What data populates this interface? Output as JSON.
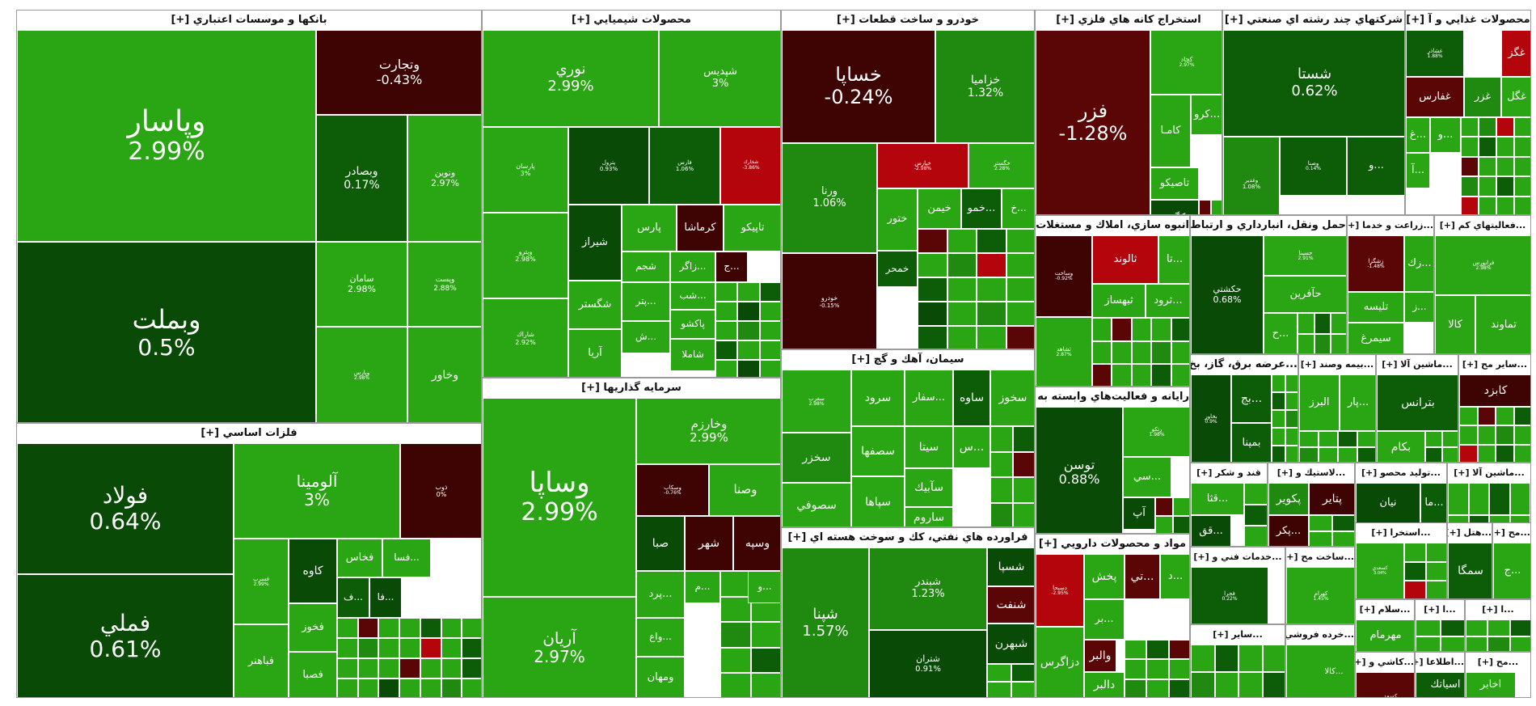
{
  "colors": {
    "bright_green": "#2aa513",
    "mid_green": "#1f8a0f",
    "dark_green": "#0c5c08",
    "darker_green": "#094a06",
    "bright_red": "#b4040c",
    "dark_red": "#5a0606",
    "maroon": "#3e0404"
  },
  "chart_data": {
    "type": "treemap",
    "sectors": [
      {
        "name": "بانکها و موسسات اعتباري [+]",
        "stocks": [
          {
            "symbol": "وپاسار",
            "change": "2.99%"
          },
          {
            "symbol": "وبملت",
            "change": "0.5%"
          },
          {
            "symbol": "وتجارت",
            "change": "-0.43%"
          },
          {
            "symbol": "وبصادر",
            "change": "0.17%"
          },
          {
            "symbol": "ونوين",
            "change": "2.97%"
          },
          {
            "symbol": "سامان",
            "change": "2.98%"
          },
          {
            "symbol": "وپست",
            "change": "2.88%"
          },
          {
            "symbol": "وپارس",
            "change": "2.98%"
          },
          {
            "symbol": "وخاور",
            "change": ""
          }
        ]
      },
      {
        "name": "محصولات شيميايي [+]",
        "stocks": [
          {
            "symbol": "نوري",
            "change": "2.99%"
          },
          {
            "symbol": "شپديس",
            "change": "3%"
          },
          {
            "symbol": "پارسان",
            "change": "3%"
          },
          {
            "symbol": "پترول",
            "change": "0.93%"
          },
          {
            "symbol": "فارس",
            "change": "1.06%"
          },
          {
            "symbol": "شخارك",
            "change": "-3.86%"
          },
          {
            "symbol": "وپترو",
            "change": "2.98%"
          },
          {
            "symbol": "شيراز",
            "change": ""
          },
          {
            "symbol": "پارس",
            "change": ""
          },
          {
            "symbol": "كرماشا",
            "change": ""
          },
          {
            "symbol": "تاپيكو",
            "change": ""
          },
          {
            "symbol": "شگستر",
            "change": ""
          },
          {
            "symbol": "شجم",
            "change": ""
          },
          {
            "symbol": "...زاگر",
            "change": ""
          },
          {
            "symbol": "...ج",
            "change": ""
          },
          {
            "symbol": "...شب",
            "change": ""
          },
          {
            "symbol": "شاراك",
            "change": "2.92%"
          },
          {
            "symbol": "...پتر",
            "change": ""
          },
          {
            "symbol": "پاكشو",
            "change": ""
          },
          {
            "symbol": "آريا",
            "change": ""
          },
          {
            "symbol": "...ش",
            "change": ""
          },
          {
            "symbol": "شاملا",
            "change": ""
          }
        ]
      },
      {
        "name": "خودرو و ساخت قطعات [+]",
        "stocks": [
          {
            "symbol": "خساپا",
            "change": "-0.24%"
          },
          {
            "symbol": "خزاميا",
            "change": "1.32%"
          },
          {
            "symbol": "ورنا",
            "change": "1.06%"
          },
          {
            "symbol": "خپارس",
            "change": "-2.98%"
          },
          {
            "symbol": "خگستر",
            "change": "2.28%"
          },
          {
            "symbol": "خودرو",
            "change": "-0.15%"
          },
          {
            "symbol": "ختور",
            "change": ""
          },
          {
            "symbol": "خيمن",
            "change": ""
          },
          {
            "symbol": "...خمو",
            "change": ""
          },
          {
            "symbol": "...خ",
            "change": ""
          },
          {
            "symbol": "خمحر",
            "change": ""
          }
        ]
      },
      {
        "name": "استخراج کانه هاي فلزي [+]",
        "stocks": [
          {
            "symbol": "فزر",
            "change": "-1.28%"
          },
          {
            "symbol": "كچاد",
            "change": "2.97%"
          },
          {
            "symbol": "كامـا",
            "change": ""
          },
          {
            "symbol": "...كرو",
            "change": ""
          },
          {
            "symbol": "تاصيكو",
            "change": ""
          },
          {
            "symbol": "كگهر",
            "change": ""
          }
        ]
      },
      {
        "name": "شرکتهاي چند رشته اي صنعتي [+]",
        "stocks": [
          {
            "symbol": "شستا",
            "change": "0.62%"
          },
          {
            "symbol": "وغدير",
            "change": "1.08%"
          },
          {
            "symbol": "وصنا",
            "change": "0.14%"
          },
          {
            "symbol": "...و",
            "change": ""
          }
        ]
      },
      {
        "name": "محصولات غذايي و آ [+]",
        "stocks": [
          {
            "symbol": "غگز",
            "change": ""
          },
          {
            "symbol": "غشاذر",
            "change": "1.88%"
          },
          {
            "symbol": "غفارس",
            "change": ""
          },
          {
            "symbol": "غزر",
            "change": ""
          },
          {
            "symbol": "غگل",
            "change": ""
          },
          {
            "symbol": "...غ",
            "change": ""
          },
          {
            "symbol": "...و",
            "change": ""
          },
          {
            "symbol": "...آ",
            "change": ""
          }
        ]
      },
      {
        "name": "انبوه سازي، املاك و مستغلات [+]",
        "stocks": [
          {
            "symbol": "وساخت",
            "change": "-0.92%"
          },
          {
            "symbol": "ثالوند",
            "change": ""
          },
          {
            "symbol": "...تا",
            "change": ""
          },
          {
            "symbol": "ثبهساز",
            "change": ""
          },
          {
            "symbol": "...ثرود",
            "change": ""
          },
          {
            "symbol": "ثشاهد",
            "change": "2.87%"
          }
        ]
      },
      {
        "name": "حمل ونقل، انبارداري و ارتباط [+]...",
        "stocks": [
          {
            "symbol": "حكشتي",
            "change": "0.68%"
          },
          {
            "symbol": "حسينا",
            "change": "2.91%"
          },
          {
            "symbol": "حآفرين",
            "change": ""
          },
          {
            "symbol": "...ح",
            "change": ""
          }
        ]
      },
      {
        "name": "...زراعت و خدما [+]",
        "stocks": [
          {
            "symbol": "زشگزا",
            "change": "-1.48%"
          },
          {
            "symbol": "...زك",
            "change": ""
          },
          {
            "symbol": "تليسه",
            "change": ""
          },
          {
            "symbol": "...ز",
            "change": ""
          },
          {
            "symbol": "سيمرغ",
            "change": ""
          }
        ]
      },
      {
        "name": "...فعاليتهاي كم [+]",
        "stocks": [
          {
            "symbol": "فرابورس",
            "change": "2.98%"
          },
          {
            "symbol": "تماوند",
            "change": ""
          },
          {
            "symbol": "كالا",
            "change": ""
          }
        ]
      },
      {
        "name": "فلزات اساسي [+]",
        "stocks": [
          {
            "symbol": "فولاد",
            "change": "0.64%"
          },
          {
            "symbol": "فملي",
            "change": "0.61%"
          },
          {
            "symbol": "آلومينا",
            "change": "3%"
          },
          {
            "symbol": "ذوب",
            "change": "0%"
          },
          {
            "symbol": "فسرب",
            "change": "2.99%"
          },
          {
            "symbol": "كاوه",
            "change": ""
          },
          {
            "symbol": "فخاس",
            "change": ""
          },
          {
            "symbol": "...فسا",
            "change": ""
          },
          {
            "symbol": "فخوز",
            "change": ""
          },
          {
            "symbol": "فباهنر",
            "change": ""
          },
          {
            "symbol": "فصبا",
            "change": ""
          },
          {
            "symbol": "...ف",
            "change": ""
          },
          {
            "symbol": "...فا",
            "change": ""
          }
        ]
      },
      {
        "name": "سرمايه گذاريها [+]",
        "stocks": [
          {
            "symbol": "وساپا",
            "change": "2.99%"
          },
          {
            "symbol": "آريان",
            "change": "2.97%"
          },
          {
            "symbol": "وخارزم",
            "change": "2.99%"
          },
          {
            "symbol": "وسكاب",
            "change": "-0.76%"
          },
          {
            "symbol": "وصنا",
            "change": ""
          },
          {
            "symbol": "صبا",
            "change": ""
          },
          {
            "symbol": "شهر",
            "change": ""
          },
          {
            "symbol": "وسپه",
            "change": ""
          },
          {
            "symbol": "...پرد",
            "change": ""
          },
          {
            "symbol": "...م",
            "change": ""
          },
          {
            "symbol": "...واع",
            "change": ""
          },
          {
            "symbol": "ومهان",
            "change": ""
          },
          {
            "symbol": "...و",
            "change": ""
          }
        ]
      },
      {
        "name": "سيمان، آهك و گچ [+]",
        "stocks": [
          {
            "symbol": "سغرب",
            "change": "2.98%"
          },
          {
            "symbol": "سرود",
            "change": ""
          },
          {
            "symbol": "...سفار",
            "change": ""
          },
          {
            "symbol": "ساوه",
            "change": ""
          },
          {
            "symbol": "سخوز",
            "change": ""
          },
          {
            "symbol": "سخزر",
            "change": ""
          },
          {
            "symbol": "سصفها",
            "change": ""
          },
          {
            "symbol": "سيتا",
            "change": ""
          },
          {
            "symbol": "...س",
            "change": ""
          },
          {
            "symbol": "سآبيك",
            "change": ""
          },
          {
            "symbol": "سصوفي",
            "change": ""
          },
          {
            "symbol": "سپاها",
            "change": ""
          },
          {
            "symbol": "ساروم",
            "change": ""
          }
        ]
      },
      {
        "name": "رايانه و فعاليت‌هاي وابسته به [+]...",
        "stocks": [
          {
            "symbol": "توسن",
            "change": "0.88%"
          },
          {
            "symbol": "رتكو",
            "change": "1.98%"
          },
          {
            "symbol": "...سي",
            "change": ""
          },
          {
            "symbol": "آپ",
            "change": ""
          }
        ]
      },
      {
        "name": "فراورده هاي نفتي، كك و سوخت هسته اي [+]",
        "stocks": [
          {
            "symbol": "شپنا",
            "change": "1.57%"
          },
          {
            "symbol": "شبندر",
            "change": "1.23%"
          },
          {
            "symbol": "شتران",
            "change": "0.91%"
          },
          {
            "symbol": "شسپا",
            "change": ""
          },
          {
            "symbol": "شنفت",
            "change": ""
          },
          {
            "symbol": "شبهرن",
            "change": ""
          }
        ]
      },
      {
        "name": "مواد و محصولات دارويي [+]",
        "stocks": [
          {
            "symbol": "دسبحا",
            "change": "-2.95%"
          },
          {
            "symbol": "پخش",
            "change": ""
          },
          {
            "symbol": "...تي",
            "change": ""
          },
          {
            "symbol": "...د",
            "change": ""
          },
          {
            "symbol": "...بر",
            "change": ""
          },
          {
            "symbol": "دزاگرس",
            "change": ""
          },
          {
            "symbol": "والبر",
            "change": ""
          },
          {
            "symbol": "دالبر",
            "change": ""
          }
        ]
      },
      {
        "name": "...عرضه برق، گاز، بخ [+]",
        "stocks": [
          {
            "symbol": "بخاور",
            "change": "0.9%"
          },
          {
            "symbol": "...بج",
            "change": ""
          },
          {
            "symbol": "بمپنا",
            "change": ""
          }
        ]
      },
      {
        "name": "...بيمه وصند [+]",
        "stocks": [
          {
            "symbol": "البرز",
            "change": ""
          },
          {
            "symbol": "...پار",
            "change": ""
          }
        ]
      },
      {
        "name": "...ماشين آلا [+]",
        "stocks": [
          {
            "symbol": "بترانس",
            "change": ""
          },
          {
            "symbol": "بكام",
            "change": ""
          }
        ]
      },
      {
        "name": "...ساير مح [+]",
        "stocks": [
          {
            "symbol": "كابزد",
            "change": ""
          }
        ]
      },
      {
        "name": "قند و شكر [+]",
        "stocks": [
          {
            "symbol": "...قثا",
            "change": ""
          },
          {
            "symbol": "...قق",
            "change": ""
          }
        ]
      },
      {
        "name": "...لاستيك و [+]",
        "stocks": [
          {
            "symbol": "پتاير",
            "change": ""
          },
          {
            "symbol": "پكوير",
            "change": ""
          },
          {
            "symbol": "...پكر",
            "change": ""
          }
        ]
      },
      {
        "name": "...توليد محصو [+]",
        "stocks": [
          {
            "symbol": "نيان",
            "change": ""
          },
          {
            "symbol": "...ما",
            "change": ""
          }
        ]
      },
      {
        "name": "...ماشين آلا [+]",
        "stocks": []
      },
      {
        "name": "...استخرا [+]",
        "stocks": [
          {
            "symbol": "كسعدي",
            "change": "3.04%"
          }
        ]
      },
      {
        "name": "...هتل [+]",
        "stocks": [
          {
            "symbol": "سمگا",
            "change": ""
          }
        ]
      },
      {
        "name": "...مح [+]",
        "stocks": [
          {
            "symbol": "...ج",
            "change": ""
          }
        ]
      },
      {
        "name": "...خدمات فني و [+]",
        "stocks": [
          {
            "symbol": "فجرا",
            "change": "0.22%"
          }
        ]
      },
      {
        "name": "...ساخت مح [+]",
        "stocks": [
          {
            "symbol": "كهرام",
            "change": "1.45%"
          }
        ]
      },
      {
        "name": "...سلام [+]",
        "stocks": [
          {
            "symbol": "مهرمام",
            "change": ""
          }
        ]
      },
      {
        "name": "...ا [+]",
        "stocks": []
      },
      {
        "name": "...ا [+]",
        "stocks": []
      },
      {
        "name": "...ساير [+]",
        "stocks": []
      },
      {
        "name": "...خرده فروشي،با [+]",
        "stocks": [
          {
            "symbol": "...كالا",
            "change": ""
          }
        ]
      },
      {
        "name": "...كاشي و [+]",
        "stocks": [
          {
            "symbol": "كسعد",
            "change": "-2.99%"
          }
        ]
      },
      {
        "name": "...اطلاعا [+]",
        "stocks": [
          {
            "symbol": "اسياتك",
            "change": ""
          }
        ]
      },
      {
        "name": "...مح [+]",
        "stocks": [
          {
            "symbol": "اخابر",
            "change": ""
          }
        ]
      },
      {
        "name": "...[+]",
        "stocks": []
      },
      {
        "name": "...[+]",
        "stocks": []
      }
    ]
  }
}
